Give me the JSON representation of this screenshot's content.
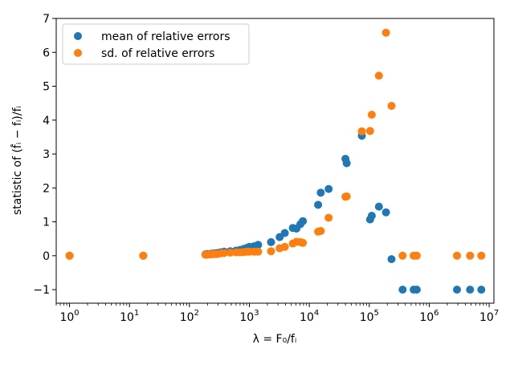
{
  "chart_data": {
    "type": "scatter",
    "xscale": "log",
    "xlabel": "λ = F₀/fᵢ",
    "ylabel": "statistic of (f̂ᵢ − fᵢ)/fᵢ",
    "xlim": [
      0.6,
      12000000
    ],
    "ylim": [
      -1.4,
      7
    ],
    "x_ticks": [
      {
        "base": "10",
        "exp": "0",
        "value": 1
      },
      {
        "base": "10",
        "exp": "1",
        "value": 10
      },
      {
        "base": "10",
        "exp": "2",
        "value": 100
      },
      {
        "base": "10",
        "exp": "3",
        "value": 1000
      },
      {
        "base": "10",
        "exp": "4",
        "value": 10000
      },
      {
        "base": "10",
        "exp": "5",
        "value": 100000
      },
      {
        "base": "10",
        "exp": "6",
        "value": 1000000
      },
      {
        "base": "10",
        "exp": "7",
        "value": 10000000
      }
    ],
    "y_ticks": [
      "−1",
      "0",
      "1",
      "2",
      "3",
      "4",
      "5",
      "6",
      "7"
    ],
    "y_tick_values": [
      -1,
      0,
      1,
      2,
      3,
      4,
      5,
      6,
      7
    ],
    "legend_position": "top-left",
    "grid": false,
    "series": [
      {
        "name": "mean of relative errors",
        "color": "#1f77b4",
        "points": [
          [
            1,
            0
          ],
          [
            17,
            0
          ],
          [
            185,
            0.04
          ],
          [
            200,
            0.05
          ],
          [
            215,
            0.05
          ],
          [
            235,
            0.06
          ],
          [
            260,
            0.07
          ],
          [
            290,
            0.08
          ],
          [
            330,
            0.1
          ],
          [
            380,
            0.12
          ],
          [
            480,
            0.13
          ],
          [
            600,
            0.15
          ],
          [
            700,
            0.17
          ],
          [
            800,
            0.2
          ],
          [
            900,
            0.23
          ],
          [
            1000,
            0.26
          ],
          [
            1200,
            0.28
          ],
          [
            1400,
            0.32
          ],
          [
            2300,
            0.4
          ],
          [
            3200,
            0.55
          ],
          [
            3900,
            0.67
          ],
          [
            5300,
            0.82
          ],
          [
            6100,
            0.8
          ],
          [
            7100,
            0.93
          ],
          [
            7800,
            1.02
          ],
          [
            14000,
            1.5
          ],
          [
            15500,
            1.86
          ],
          [
            21000,
            1.97
          ],
          [
            40000,
            2.86
          ],
          [
            42000,
            2.73
          ],
          [
            75000,
            3.54
          ],
          [
            103000,
            1.07
          ],
          [
            110000,
            1.18
          ],
          [
            145000,
            1.45
          ],
          [
            190000,
            1.28
          ],
          [
            235000,
            -0.1
          ],
          [
            360000,
            -1
          ],
          [
            550000,
            -1
          ],
          [
            620000,
            -1
          ],
          [
            2900000,
            -1
          ],
          [
            4800000,
            -1
          ],
          [
            7400000,
            -1
          ]
        ]
      },
      {
        "name": "sd. of relative errors",
        "color": "#ff7f0e",
        "points": [
          [
            1,
            0
          ],
          [
            17,
            0
          ],
          [
            185,
            0.03
          ],
          [
            200,
            0.03
          ],
          [
            215,
            0.04
          ],
          [
            235,
            0.04
          ],
          [
            260,
            0.05
          ],
          [
            290,
            0.05
          ],
          [
            330,
            0.07
          ],
          [
            380,
            0.08
          ],
          [
            480,
            0.09
          ],
          [
            600,
            0.1
          ],
          [
            700,
            0.1
          ],
          [
            800,
            0.11
          ],
          [
            900,
            0.12
          ],
          [
            1000,
            0.12
          ],
          [
            1200,
            0.12
          ],
          [
            1400,
            0.12
          ],
          [
            2300,
            0.13
          ],
          [
            3200,
            0.22
          ],
          [
            3900,
            0.26
          ],
          [
            5300,
            0.36
          ],
          [
            6100,
            0.41
          ],
          [
            7100,
            0.4
          ],
          [
            7800,
            0.38
          ],
          [
            14000,
            0.71
          ],
          [
            15500,
            0.73
          ],
          [
            21000,
            1.12
          ],
          [
            40000,
            1.74
          ],
          [
            42000,
            1.75
          ],
          [
            75000,
            3.67
          ],
          [
            103000,
            3.68
          ],
          [
            110000,
            4.16
          ],
          [
            145000,
            5.31
          ],
          [
            190000,
            6.58
          ],
          [
            235000,
            4.42
          ],
          [
            360000,
            0
          ],
          [
            550000,
            0
          ],
          [
            620000,
            0
          ],
          [
            2900000,
            0
          ],
          [
            4800000,
            0
          ],
          [
            7400000,
            0
          ]
        ]
      }
    ]
  }
}
